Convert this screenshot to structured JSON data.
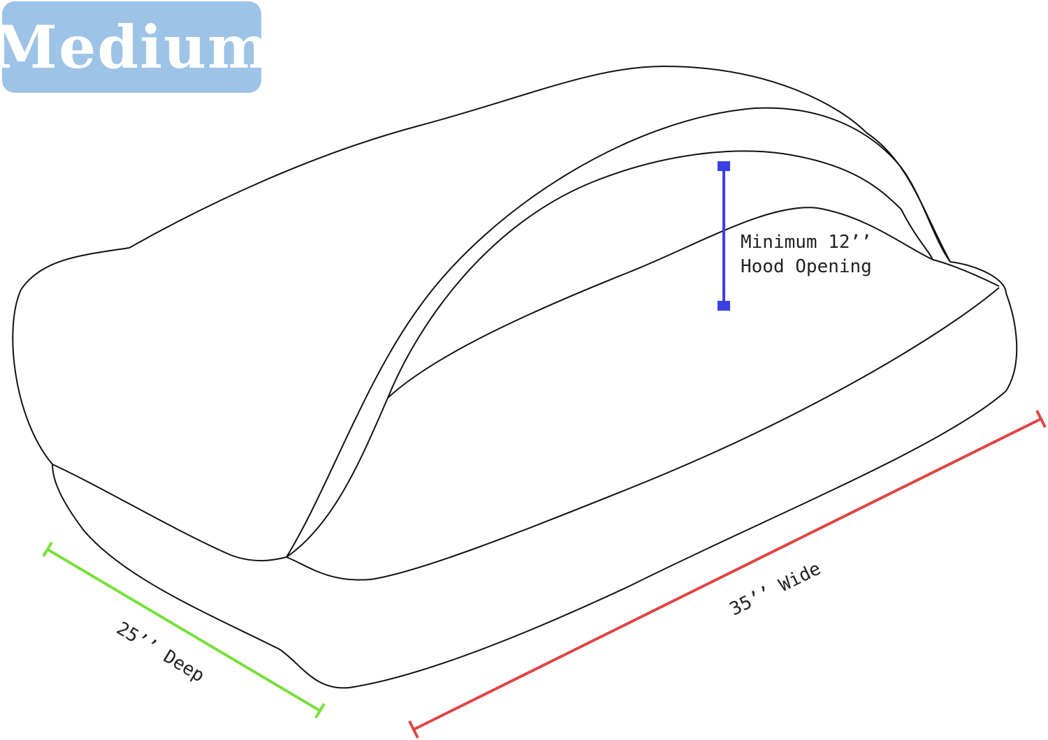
{
  "size_badge": {
    "label": "Medium",
    "color": "#9dc3e6"
  },
  "dimensions": {
    "hood": {
      "line1": "Minimum 12’’",
      "line2": "Hood Opening",
      "color": "#3b3fe0"
    },
    "width": {
      "label": "35’’ Wide",
      "color": "#e04444"
    },
    "depth": {
      "label": "25’’ Deep",
      "color": "#77e03a"
    }
  }
}
